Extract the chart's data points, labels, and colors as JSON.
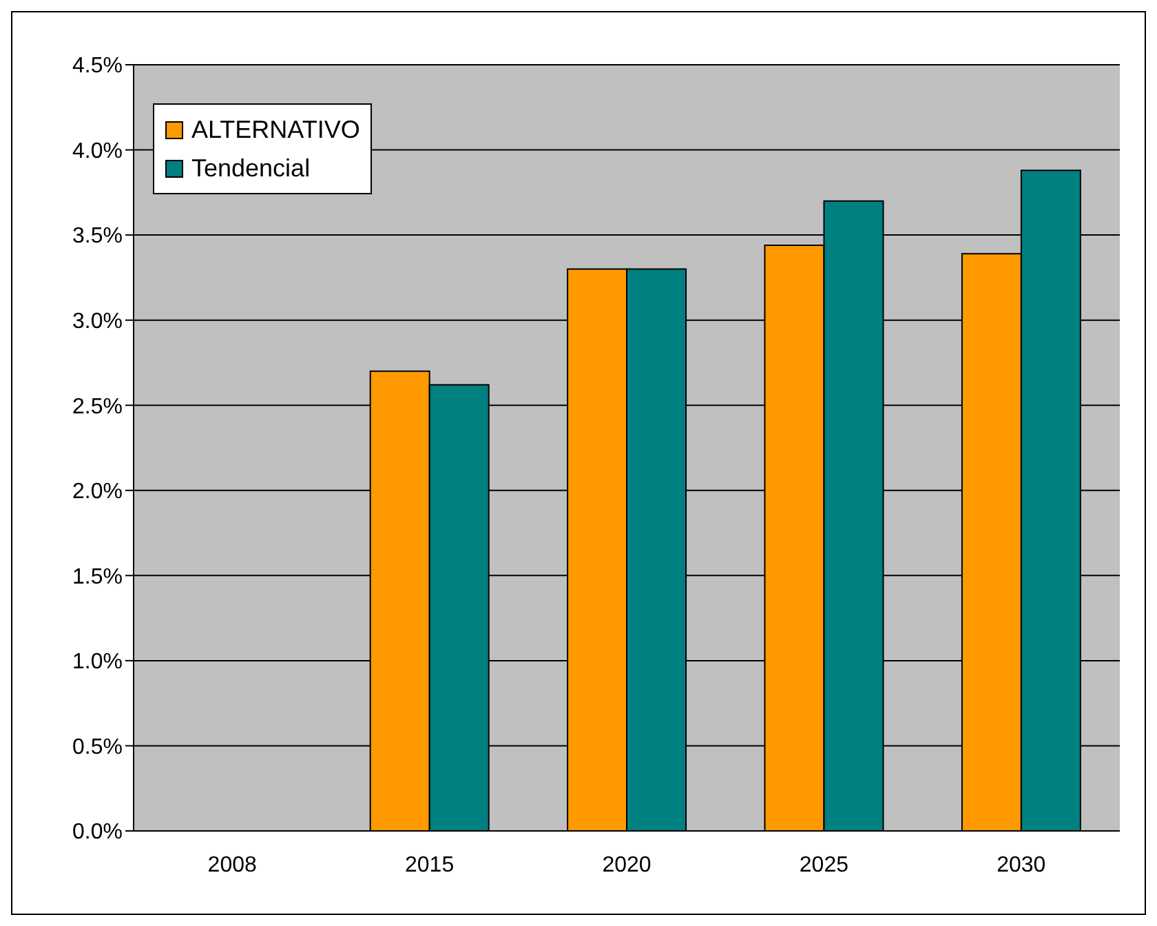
{
  "chart_data": {
    "type": "bar",
    "categories": [
      "2008",
      "2015",
      "2020",
      "2025",
      "2030"
    ],
    "series": [
      {
        "name": "ALTERNATIVO",
        "color": "#ff9900",
        "values": [
          null,
          2.7,
          3.3,
          3.44,
          3.39
        ]
      },
      {
        "name": "Tendencial",
        "color": "#008080",
        "values": [
          null,
          2.62,
          3.3,
          3.7,
          3.88
        ]
      }
    ],
    "ylim": [
      0,
      4.5
    ],
    "yticks": [
      {
        "value": 0,
        "label": "0.0%"
      },
      {
        "value": 0.5,
        "label": "0.5%"
      },
      {
        "value": 1,
        "label": "1.0%"
      },
      {
        "value": 1.5,
        "label": "1.5%"
      },
      {
        "value": 2,
        "label": "2.0%"
      },
      {
        "value": 2.5,
        "label": "2.5%"
      },
      {
        "value": 3,
        "label": "3.0%"
      },
      {
        "value": 3.5,
        "label": "3.5%"
      },
      {
        "value": 4,
        "label": "4.0%"
      },
      {
        "value": 4.5,
        "label": "4.5%"
      }
    ],
    "grid": "y",
    "legend": "top left"
  }
}
